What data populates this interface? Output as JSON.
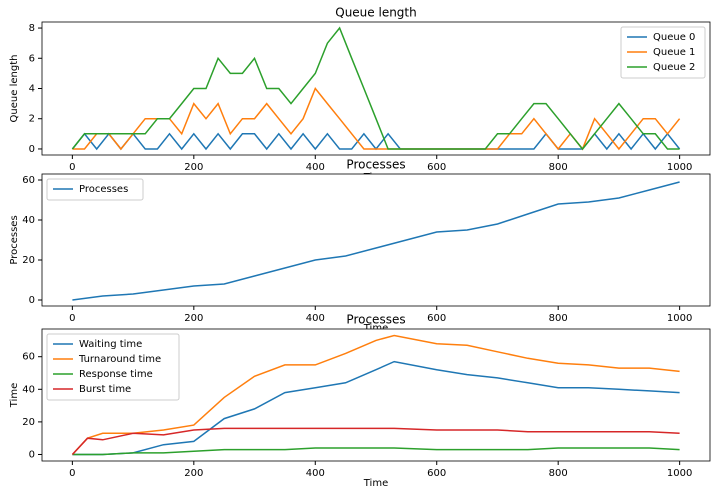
{
  "chart_data": [
    {
      "type": "line",
      "title": "Queue length",
      "xlabel": "Time",
      "ylabel": "Queue length",
      "legend": "upper right",
      "x": [
        0,
        20,
        40,
        60,
        80,
        100,
        120,
        140,
        160,
        180,
        200,
        220,
        240,
        260,
        280,
        300,
        320,
        340,
        360,
        380,
        400,
        420,
        440,
        460,
        480,
        500,
        520,
        540,
        560,
        580,
        600,
        620,
        640,
        660,
        680,
        700,
        720,
        740,
        760,
        780,
        800,
        820,
        840,
        860,
        880,
        900,
        920,
        940,
        960,
        980,
        1000
      ],
      "series": [
        {
          "name": "Queue 0",
          "color": "#1f77b4",
          "values": [
            0,
            1,
            0,
            1,
            0,
            1,
            0,
            0,
            1,
            0,
            1,
            0,
            1,
            0,
            1,
            1,
            0,
            1,
            0,
            1,
            0,
            1,
            0,
            0,
            1,
            0,
            1,
            0,
            0,
            0,
            0,
            0,
            0,
            0,
            0,
            0,
            0,
            0,
            0,
            1,
            0,
            0,
            0,
            1,
            0,
            1,
            0,
            1,
            0,
            1,
            0
          ]
        },
        {
          "name": "Queue 1",
          "color": "#ff7f0e",
          "values": [
            0,
            0,
            1,
            1,
            0,
            1,
            2,
            2,
            2,
            1,
            3,
            2,
            3,
            1,
            2,
            2,
            3,
            2,
            1,
            2,
            4,
            3,
            2,
            1,
            0,
            0,
            0,
            0,
            0,
            0,
            0,
            0,
            0,
            0,
            0,
            0,
            1,
            1,
            2,
            1,
            0,
            1,
            0,
            2,
            1,
            0,
            1,
            2,
            2,
            1,
            2
          ]
        },
        {
          "name": "Queue 2",
          "color": "#2ca02c",
          "values": [
            0,
            1,
            1,
            1,
            1,
            1,
            1,
            2,
            2,
            3,
            4,
            4,
            6,
            5,
            5,
            6,
            4,
            4,
            3,
            4,
            5,
            7,
            8,
            6,
            4,
            2,
            0,
            0,
            0,
            0,
            0,
            0,
            0,
            0,
            0,
            1,
            1,
            2,
            3,
            3,
            2,
            1,
            0,
            1,
            2,
            3,
            2,
            1,
            1,
            0,
            0
          ]
        }
      ],
      "xlim": [
        -50,
        1050
      ],
      "xticks": [
        0,
        200,
        400,
        600,
        800,
        1000
      ],
      "ylim": [
        -0.4,
        8.4
      ],
      "yticks": [
        0,
        2,
        4,
        6,
        8
      ]
    },
    {
      "type": "line",
      "title": "Processes",
      "xlabel": "Time",
      "ylabel": "Processes",
      "legend": "upper left",
      "x": [
        0,
        50,
        100,
        150,
        200,
        250,
        300,
        350,
        400,
        450,
        500,
        550,
        600,
        650,
        700,
        750,
        800,
        850,
        900,
        950,
        1000
      ],
      "series": [
        {
          "name": "Processes",
          "color": "#1f77b4",
          "values": [
            0,
            2,
            3,
            5,
            7,
            8,
            12,
            16,
            20,
            22,
            26,
            30,
            34,
            35,
            38,
            43,
            48,
            49,
            51,
            55,
            59
          ]
        }
      ],
      "xlim": [
        -50,
        1050
      ],
      "xticks": [
        0,
        200,
        400,
        600,
        800,
        1000
      ],
      "ylim": [
        -3,
        63
      ],
      "yticks": [
        0,
        20,
        40,
        60
      ]
    },
    {
      "type": "line",
      "title": "Processes",
      "xlabel": "Time",
      "ylabel": "Time",
      "legend": "upper left",
      "x": [
        0,
        25,
        50,
        100,
        150,
        200,
        250,
        300,
        350,
        400,
        450,
        500,
        530,
        600,
        650,
        700,
        750,
        800,
        850,
        900,
        950,
        1000
      ],
      "series": [
        {
          "name": "Waiting time",
          "color": "#1f77b4",
          "values": [
            0,
            0,
            0,
            1,
            6,
            8,
            22,
            28,
            38,
            41,
            44,
            52,
            57,
            52,
            49,
            47,
            44,
            41,
            41,
            40,
            39,
            38
          ]
        },
        {
          "name": "Turnaround time",
          "color": "#ff7f0e",
          "values": [
            0,
            10,
            13,
            13,
            15,
            18,
            35,
            48,
            55,
            55,
            62,
            70,
            73,
            68,
            67,
            63,
            59,
            56,
            55,
            53,
            53,
            51
          ]
        },
        {
          "name": "Response time",
          "color": "#2ca02c",
          "values": [
            0,
            0,
            0,
            1,
            1,
            2,
            3,
            3,
            3,
            4,
            4,
            4,
            4,
            3,
            3,
            3,
            3,
            4,
            4,
            4,
            4,
            3
          ]
        },
        {
          "name": "Burst time",
          "color": "#d62728",
          "values": [
            0,
            10,
            9,
            13,
            12,
            15,
            16,
            16,
            16,
            16,
            16,
            16,
            16,
            15,
            15,
            15,
            14,
            14,
            14,
            14,
            14,
            13
          ]
        }
      ],
      "xlim": [
        -50,
        1050
      ],
      "xticks": [
        0,
        200,
        400,
        600,
        800,
        1000
      ],
      "ylim": [
        -4,
        77
      ],
      "yticks": [
        0,
        20,
        40,
        60
      ]
    }
  ]
}
